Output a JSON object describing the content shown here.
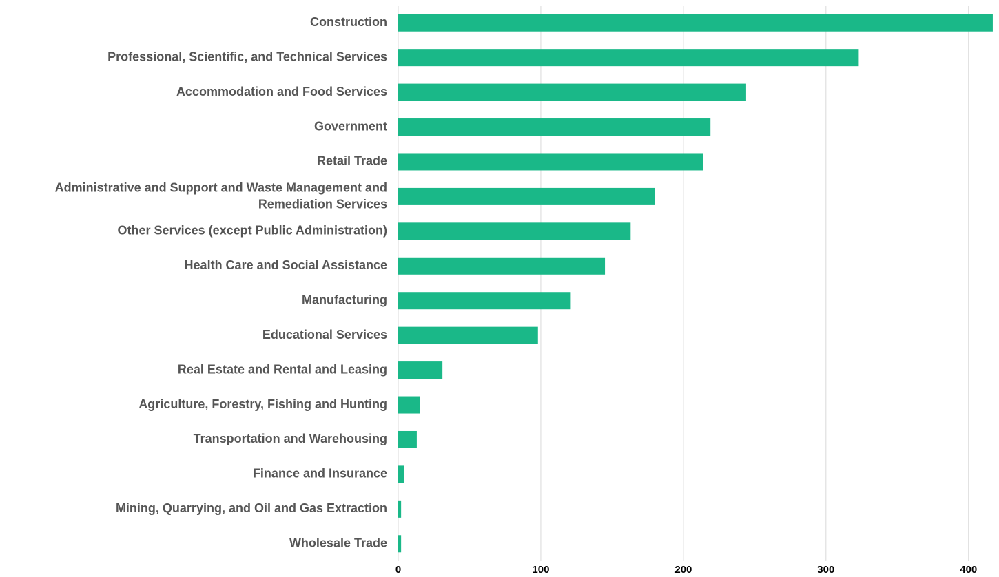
{
  "chart_data": {
    "type": "bar",
    "orientation": "horizontal",
    "categories": [
      "Construction",
      "Professional, Scientific, and Technical Services",
      "Accommodation and Food Services",
      "Government",
      "Retail Trade",
      "Administrative and Support and Waste Management and Remediation Services",
      "Other Services (except  Public Administration)",
      "Health Care and Social Assistance",
      "Manufacturing",
      "Educational  Services",
      "Real Estate and Rental and Leasing",
      "Agriculture, Forestry, Fishing and Hunting",
      "Transportation and Warehousing",
      "Finance and Insurance",
      "Mining, Quarrying, and Oil and Gas Extraction",
      "Wholesale  Trade"
    ],
    "values": [
      417,
      323,
      244,
      219,
      214,
      180,
      163,
      145,
      121,
      98,
      31,
      15,
      13,
      4,
      2,
      2
    ],
    "color": "#1ab888",
    "xlim": [
      0,
      418
    ],
    "xticks": [
      0,
      100,
      200,
      300,
      400
    ],
    "grid": true
  }
}
